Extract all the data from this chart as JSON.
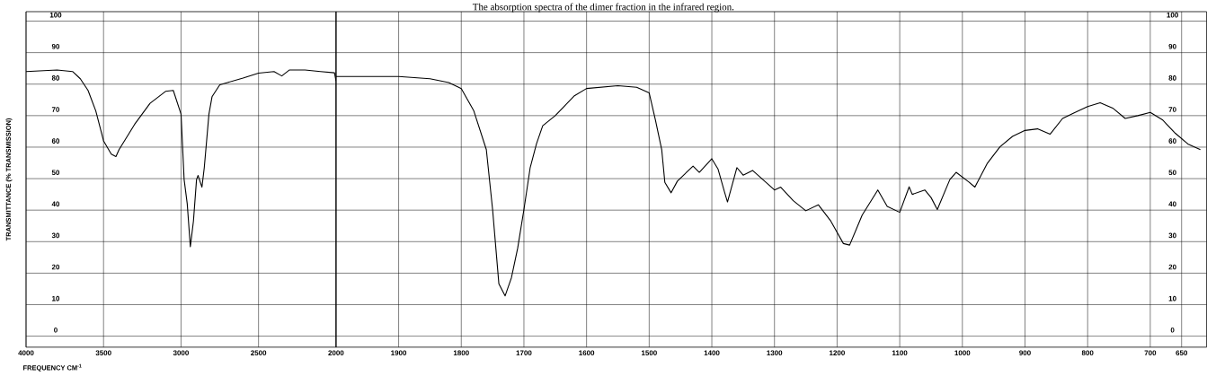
{
  "chart_data": [
    {
      "type": "line",
      "xlabel": "FREQUENCY   CM$^{-1}$",
      "ylabel": "TRANSMITTANCE  (% TRANSMISSION)",
      "x": [
        4000,
        3800,
        3700,
        3650,
        3600,
        3550,
        3500,
        3450,
        3420,
        3400,
        3300,
        3200,
        3100,
        3050,
        3000,
        2980,
        2960,
        2940,
        2920,
        2900,
        2890,
        2880,
        2865,
        2850,
        2820,
        2800,
        2750,
        2700,
        2600,
        2500,
        2400,
        2350,
        2300,
        2200,
        2100,
        2010,
        2000
      ],
      "series": [
        {
          "color": "#000000",
          "values": [
            84,
            84.5,
            84,
            81.7,
            78,
            71.5,
            62,
            57.8,
            57,
            59.2,
            67.2,
            73.9,
            77.7,
            78,
            70.5,
            49.7,
            42,
            28.4,
            36.5,
            49.7,
            51,
            49.5,
            47.3,
            53.5,
            70.5,
            76,
            79.8,
            80.5,
            81.9,
            83.5,
            84,
            82.6,
            84.5,
            84.5,
            84,
            83.6,
            81
          ]
        }
      ],
      "xlim": [
        4000,
        2000
      ],
      "xticks": [
        4000,
        3500,
        3000,
        2500,
        2000
      ],
      "ylim": [
        -3.5,
        103
      ],
      "yticks": [
        0,
        10,
        20,
        30,
        40,
        50,
        60,
        70,
        80,
        90,
        100
      ],
      "grid": true
    },
    {
      "type": "line",
      "title": "The absorption spectra of the dimer fraction in the infrared region.",
      "x": [
        2000,
        1900,
        1850,
        1820,
        1800,
        1780,
        1760,
        1750,
        1740,
        1730,
        1720,
        1710,
        1700,
        1690,
        1680,
        1670,
        1650,
        1620,
        1600,
        1550,
        1520,
        1500,
        1490,
        1480,
        1475,
        1465,
        1455,
        1430,
        1420,
        1400,
        1390,
        1380,
        1375,
        1360,
        1350,
        1335,
        1300,
        1290,
        1270,
        1250,
        1230,
        1210,
        1190,
        1180,
        1160,
        1135,
        1120,
        1100,
        1085,
        1080,
        1060,
        1050,
        1040,
        1020,
        1010,
        990,
        980,
        960,
        940,
        920,
        900,
        880,
        860,
        840,
        820,
        800,
        780,
        760,
        740,
        720,
        700,
        680,
        660,
        640,
        620
      ],
      "series": [
        {
          "color": "#000000",
          "axis": "y2",
          "values": [
            82.4,
            82.4,
            81.7,
            80.5,
            78.6,
            71.5,
            59.2,
            40.2,
            16.6,
            12.8,
            18.5,
            27.9,
            40.2,
            53.5,
            61,
            66.8,
            70,
            76.2,
            78.6,
            79.5,
            79,
            77.2,
            68.6,
            59.2,
            48.8,
            45.5,
            49.2,
            54,
            52,
            56.3,
            53,
            45.9,
            42.6,
            53.5,
            51.1,
            52.6,
            46.4,
            47.3,
            43,
            39.8,
            41.7,
            36.5,
            29.4,
            28.9,
            38.4,
            46.4,
            41.2,
            39.3,
            47.4,
            45,
            46.4,
            44,
            40.2,
            49.7,
            52,
            49,
            47.3,
            54.9,
            60.1,
            63.4,
            65.3,
            65.8,
            64.1,
            69.1,
            71,
            72.9,
            74.1,
            72.4,
            69.1,
            70,
            71,
            68.6,
            64.4,
            61,
            59.2
          ]
        }
      ],
      "xlim": [
        2000,
        610
      ],
      "xticks": [
        1900,
        1800,
        1700,
        1600,
        1500,
        1400,
        1300,
        1200,
        1100,
        1000,
        900,
        800,
        700,
        650
      ],
      "y2lim": [
        -3.5,
        103
      ],
      "y2ticks": [
        0,
        10,
        20,
        30,
        40,
        50,
        60,
        70,
        80,
        90,
        100
      ],
      "grid": true
    }
  ]
}
